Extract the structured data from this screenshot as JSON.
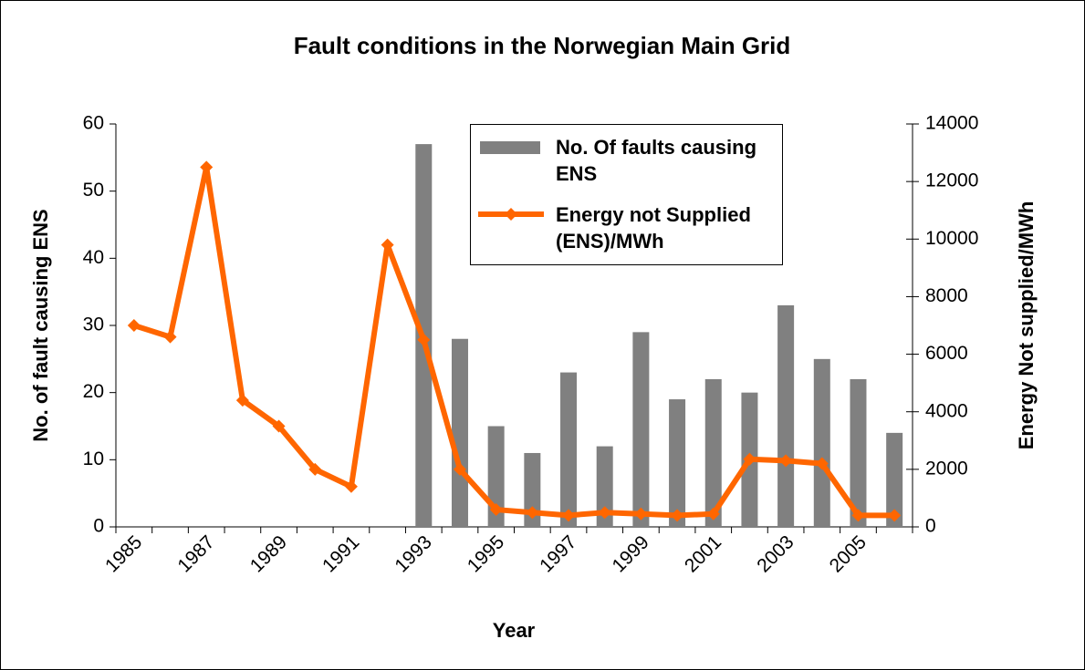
{
  "chart_data": {
    "type": "bar",
    "title": "Fault conditions in the Norwegian Main Grid",
    "x_label": "Year",
    "y_label": "No. of fault causing ENS",
    "y2_label": "Energy Not supplied/MWh",
    "categories": [
      "1985",
      null,
      "1987",
      null,
      "1989",
      null,
      "1991",
      null,
      "1993",
      null,
      "1995",
      null,
      "1997",
      null,
      "1999",
      null,
      "2001",
      null,
      "2003",
      null,
      "2005",
      null
    ],
    "ylim": [
      0,
      60
    ],
    "yticks": [
      0,
      10,
      20,
      30,
      40,
      50,
      60
    ],
    "y2lim": [
      0,
      14000
    ],
    "y2ticks": [
      0,
      2000,
      4000,
      6000,
      8000,
      10000,
      12000,
      14000
    ],
    "grid": false,
    "legend": "top",
    "series": [
      {
        "name": "No. Of faults causing ENS",
        "type": "bar",
        "color": "#808080",
        "values": [
          null,
          null,
          null,
          null,
          null,
          null,
          null,
          null,
          57,
          28,
          15,
          11,
          23,
          12,
          29,
          19,
          22,
          20,
          33,
          25,
          22,
          14
        ]
      },
      {
        "name": "Energy not Supplied (ENS)/MWh",
        "type": "line",
        "axis": "y2",
        "color": "#ff6600",
        "values": [
          7000,
          6600,
          12500,
          4400,
          3500,
          2000,
          1400,
          9800,
          6500,
          2000,
          600,
          500,
          400,
          500,
          450,
          400,
          450,
          2350,
          2300,
          2200,
          400,
          400
        ]
      }
    ]
  }
}
